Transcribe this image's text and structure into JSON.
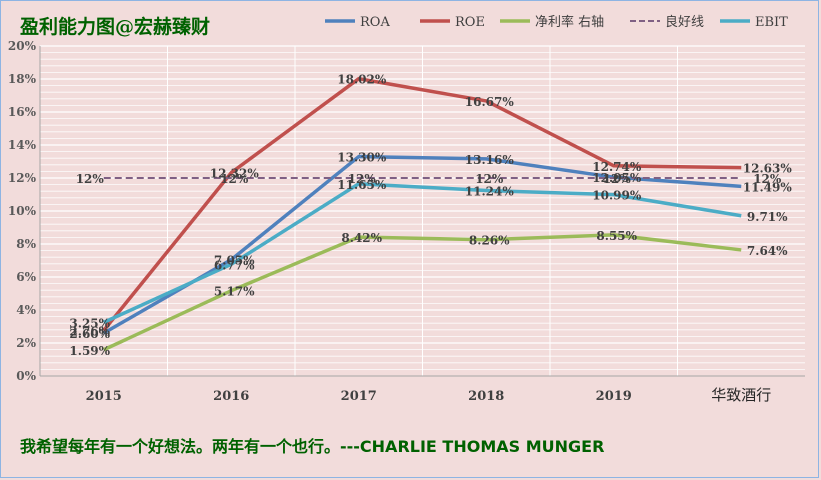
{
  "chart_data": {
    "type": "line",
    "title": "盈利能力图@宏赫臻财",
    "categories": [
      "2015",
      "2016",
      "2017",
      "2018",
      "2019",
      "华致酒行"
    ],
    "ylim": [
      0,
      20
    ],
    "yticks": [
      "0%",
      "2%",
      "4%",
      "6%",
      "8%",
      "10%",
      "12%",
      "14%",
      "16%",
      "18%",
      "20%"
    ],
    "grid": true,
    "legend_position": "top",
    "series": [
      {
        "name": "ROA",
        "color": "#4f81bd",
        "dashed": false,
        "values": [
          2.6,
          7.05,
          13.3,
          13.16,
          12.05,
          11.49
        ],
        "labels": [
          "2.60%",
          "7.05%",
          "13.30%",
          "13.16%",
          "12.05%",
          "11.49%"
        ]
      },
      {
        "name": "ROE",
        "color": "#c0504d",
        "dashed": false,
        "values": [
          2.76,
          12.32,
          18.02,
          16.67,
          12.74,
          12.63
        ],
        "labels": [
          "2.76%",
          "12.32%",
          "18.02%",
          "16.67%",
          "12.74%",
          "12.63%"
        ]
      },
      {
        "name": "净利率 右轴",
        "color": "#9bbb59",
        "dashed": false,
        "values": [
          1.59,
          5.17,
          8.42,
          8.26,
          8.55,
          7.64
        ],
        "labels": [
          "1.59%",
          "5.17%",
          "8.42%",
          "8.26%",
          "8.55%",
          "7.64%"
        ]
      },
      {
        "name": "良好线",
        "color": "#7f6084",
        "dashed": true,
        "values": [
          12,
          12,
          12,
          12,
          12,
          12
        ],
        "labels": [
          "12%",
          "12%",
          "12%",
          "12%",
          "12%",
          "12%"
        ]
      },
      {
        "name": "EBIT",
        "color": "#4bacc6",
        "dashed": false,
        "values": [
          3.25,
          6.77,
          11.65,
          11.24,
          10.99,
          9.71
        ],
        "labels": [
          "3.25%",
          "6.77%",
          "11.65%",
          "11.24%",
          "10.99%",
          "9.71%"
        ]
      }
    ]
  },
  "quote": "我希望每年有一个好想法。两年有一个也行。---CHARLIE THOMAS MUNGER"
}
